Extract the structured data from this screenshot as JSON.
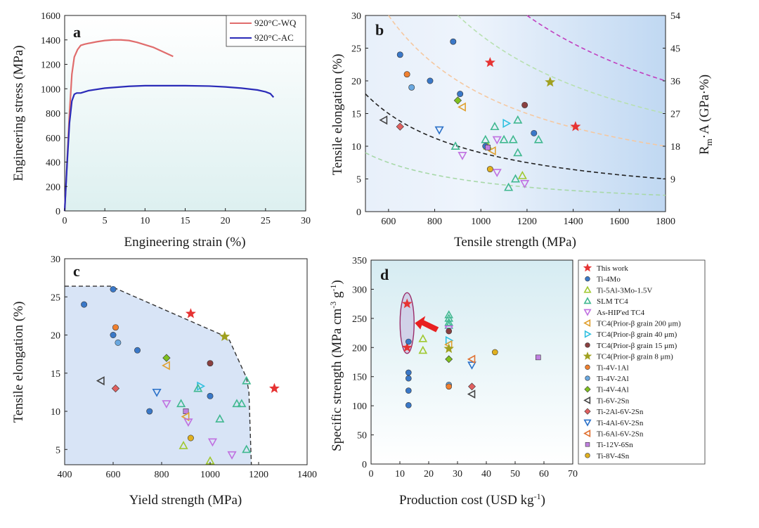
{
  "chart_data": [
    {
      "panel": "a",
      "type": "line",
      "xlabel": "Engineering strain (%)",
      "ylabel": "Engineering stress (MPa)",
      "xlim": [
        0,
        30
      ],
      "ylim": [
        0,
        1600
      ],
      "xticks": [
        "0",
        "5",
        "10",
        "15",
        "20",
        "25",
        "30"
      ],
      "yticks": [
        "0",
        "200",
        "400",
        "600",
        "800",
        "1000",
        "1200",
        "1400",
        "1600"
      ],
      "legend_position": "top-right",
      "series": [
        {
          "name": "920°C-WQ",
          "color": "#e06c6c",
          "x": [
            0,
            0.3,
            0.6,
            0.9,
            1.2,
            1.6,
            2.0,
            2.5,
            3,
            4,
            5,
            6,
            7,
            8,
            9,
            10,
            11,
            12,
            13,
            13.5
          ],
          "y": [
            0,
            400,
            800,
            1120,
            1260,
            1320,
            1355,
            1365,
            1372,
            1385,
            1395,
            1400,
            1400,
            1395,
            1380,
            1360,
            1340,
            1310,
            1280,
            1265
          ]
        },
        {
          "name": "920°C-AC",
          "color": "#2b2bb8",
          "x": [
            0,
            0.3,
            0.6,
            0.9,
            1.2,
            1.5,
            2,
            3,
            5,
            8,
            10,
            12,
            15,
            18,
            20,
            22,
            24,
            25,
            25.6,
            26
          ],
          "y": [
            0,
            380,
            720,
            900,
            955,
            965,
            965,
            985,
            1005,
            1020,
            1025,
            1025,
            1025,
            1022,
            1015,
            1005,
            990,
            975,
            960,
            930
          ]
        }
      ]
    },
    {
      "panel": "b",
      "type": "scatter",
      "xlabel": "Tensile strength (MPa)",
      "ylabel": "Tensile elongation (%)",
      "y2label": "Rm·A (GPa·%)",
      "xlim": [
        500,
        1800
      ],
      "ylim": [
        0,
        30
      ],
      "y2lim": [
        0,
        54
      ],
      "xticks": [
        "600",
        "800",
        "1000",
        "1200",
        "1400",
        "1600",
        "1800"
      ],
      "yticks": [
        "0",
        "5",
        "10",
        "15",
        "20",
        "25",
        "30"
      ],
      "y2ticks": [
        "9",
        "18",
        "27",
        "36",
        "45",
        "54"
      ],
      "iso_curves": [
        {
          "value": 4.5,
          "color": "#a8d8a8"
        },
        {
          "value": 9,
          "color": "#222222"
        },
        {
          "value": 18,
          "color": "#f5c8a0"
        },
        {
          "value": 27,
          "color": "#b8e0b0"
        },
        {
          "value": 36,
          "color": "#c040c0"
        }
      ],
      "points": [
        {
          "m": "star",
          "c": "#e63333",
          "x": 1040,
          "y": 22.8
        },
        {
          "m": "star",
          "c": "#e63333",
          "x": 1410,
          "y": 13
        },
        {
          "m": "circle",
          "c": "#3a78c8",
          "x": 650,
          "y": 24
        },
        {
          "m": "circle",
          "c": "#3a78c8",
          "x": 780,
          "y": 20
        },
        {
          "m": "circle",
          "c": "#3a78c8",
          "x": 880,
          "y": 26
        },
        {
          "m": "circle",
          "c": "#3a78c8",
          "x": 910,
          "y": 18
        },
        {
          "m": "circle",
          "c": "#3a78c8",
          "x": 1230,
          "y": 12
        },
        {
          "m": "circle",
          "c": "#6aa8e0",
          "x": 700,
          "y": 19
        },
        {
          "m": "tri-up",
          "c": "#a0c830",
          "x": 1180,
          "y": 5.5
        },
        {
          "m": "tri-up",
          "c": "#a0c830",
          "x": 1030,
          "y": 10
        },
        {
          "m": "tri-up",
          "c": "#40b890",
          "x": 1020,
          "y": 11
        },
        {
          "m": "tri-up",
          "c": "#40b890",
          "x": 1060,
          "y": 13
        },
        {
          "m": "tri-up",
          "c": "#40b890",
          "x": 1100,
          "y": 11
        },
        {
          "m": "tri-up",
          "c": "#40b890",
          "x": 1140,
          "y": 11
        },
        {
          "m": "tri-up",
          "c": "#40b890",
          "x": 1160,
          "y": 14
        },
        {
          "m": "tri-up",
          "c": "#40b890",
          "x": 1160,
          "y": 9
        },
        {
          "m": "tri-up",
          "c": "#40b890",
          "x": 1250,
          "y": 11
        },
        {
          "m": "tri-up",
          "c": "#40b890",
          "x": 1150,
          "y": 5
        },
        {
          "m": "tri-up",
          "c": "#40b890",
          "x": 1120,
          "y": 3.7
        },
        {
          "m": "tri-up",
          "c": "#40b890",
          "x": 890,
          "y": 10
        },
        {
          "m": "tri-down",
          "c": "#c070e0",
          "x": 1070,
          "y": 6
        },
        {
          "m": "tri-down",
          "c": "#c070e0",
          "x": 1190,
          "y": 4.3
        },
        {
          "m": "tri-down",
          "c": "#c070e0",
          "x": 920,
          "y": 8.6
        },
        {
          "m": "tri-down",
          "c": "#c070e0",
          "x": 1070,
          "y": 11
        },
        {
          "m": "tri-left",
          "c": "#e0a030",
          "x": 1050,
          "y": 9.3
        },
        {
          "m": "tri-left",
          "c": "#e0a030",
          "x": 920,
          "y": 16
        },
        {
          "m": "tri-right",
          "c": "#30c0e0",
          "x": 1110,
          "y": 13.5
        },
        {
          "m": "circle",
          "c": "#8a4040",
          "x": 1190,
          "y": 16.3
        },
        {
          "m": "star",
          "c": "#a0a020",
          "x": 1300,
          "y": 19.8
        },
        {
          "m": "circle",
          "c": "#f08030",
          "x": 680,
          "y": 21
        },
        {
          "m": "circle",
          "c": "#3a78c8",
          "x": 1020,
          "y": 10
        },
        {
          "m": "diamond",
          "c": "#80c020",
          "x": 900,
          "y": 17
        },
        {
          "m": "tri-left",
          "c": "#444444",
          "x": 580,
          "y": 14
        },
        {
          "m": "diamond",
          "c": "#e06060",
          "x": 650,
          "y": 13
        },
        {
          "m": "tri-down",
          "c": "#2a70c8",
          "x": 820,
          "y": 12.5
        },
        {
          "m": "square",
          "c": "#c080e0",
          "x": 1030,
          "y": 9.8
        },
        {
          "m": "circle",
          "c": "#e0b020",
          "x": 1040,
          "y": 6.5
        }
      ]
    },
    {
      "panel": "c",
      "type": "scatter",
      "xlabel": "Yield strength (MPa)",
      "ylabel": "Tensile elongation (%)",
      "xlim": [
        400,
        1400
      ],
      "ylim": [
        3,
        30
      ],
      "xticks": [
        "400",
        "600",
        "800",
        "1000",
        "1200",
        "1400"
      ],
      "yticks": [
        "5",
        "10",
        "15",
        "20",
        "25",
        "30"
      ],
      "boundary": [
        [
          400,
          26.4
        ],
        [
          590,
          26.4
        ],
        [
          1050,
          20
        ],
        [
          1080,
          19.3
        ],
        [
          1150,
          14.4
        ],
        [
          1160,
          12.5
        ],
        [
          1170,
          3
        ]
      ],
      "points": [
        {
          "m": "star",
          "c": "#e63333",
          "x": 920,
          "y": 22.8
        },
        {
          "m": "star",
          "c": "#e63333",
          "x": 1265,
          "y": 13
        },
        {
          "m": "circle",
          "c": "#3a78c8",
          "x": 480,
          "y": 24
        },
        {
          "m": "circle",
          "c": "#3a78c8",
          "x": 600,
          "y": 26
        },
        {
          "m": "circle",
          "c": "#3a78c8",
          "x": 600,
          "y": 20
        },
        {
          "m": "circle",
          "c": "#3a78c8",
          "x": 700,
          "y": 18
        },
        {
          "m": "circle",
          "c": "#3a78c8",
          "x": 750,
          "y": 10
        },
        {
          "m": "circle",
          "c": "#3a78c8",
          "x": 1000,
          "y": 12
        },
        {
          "m": "circle",
          "c": "#6aa8e0",
          "x": 620,
          "y": 19
        },
        {
          "m": "circle",
          "c": "#f08030",
          "x": 610,
          "y": 21
        },
        {
          "m": "diamond",
          "c": "#80c020",
          "x": 820,
          "y": 17
        },
        {
          "m": "tri-left",
          "c": "#e0a030",
          "x": 820,
          "y": 16
        },
        {
          "m": "tri-left",
          "c": "#444444",
          "x": 550,
          "y": 14
        },
        {
          "m": "diamond",
          "c": "#e06060",
          "x": 610,
          "y": 13
        },
        {
          "m": "tri-down",
          "c": "#2a70c8",
          "x": 780,
          "y": 12.5
        },
        {
          "m": "tri-right",
          "c": "#30c0e0",
          "x": 960,
          "y": 13.3
        },
        {
          "m": "tri-up",
          "c": "#40b890",
          "x": 950,
          "y": 13
        },
        {
          "m": "tri-down",
          "c": "#c070e0",
          "x": 820,
          "y": 11
        },
        {
          "m": "tri-up",
          "c": "#40b890",
          "x": 880,
          "y": 11
        },
        {
          "m": "tri-up",
          "c": "#40b890",
          "x": 1110,
          "y": 11
        },
        {
          "m": "tri-up",
          "c": "#40b890",
          "x": 1130,
          "y": 11
        },
        {
          "m": "circle",
          "c": "#8a4040",
          "x": 1000,
          "y": 16.3
        },
        {
          "m": "star",
          "c": "#a0a020",
          "x": 1060,
          "y": 19.8
        },
        {
          "m": "tri-up",
          "c": "#40b890",
          "x": 1150,
          "y": 14
        },
        {
          "m": "square",
          "c": "#c080e0",
          "x": 900,
          "y": 10
        },
        {
          "m": "tri-left",
          "c": "#e0a030",
          "x": 900,
          "y": 9.3
        },
        {
          "m": "tri-down",
          "c": "#c070e0",
          "x": 910,
          "y": 8.6
        },
        {
          "m": "tri-up",
          "c": "#40b890",
          "x": 1040,
          "y": 9
        },
        {
          "m": "circle",
          "c": "#e0b020",
          "x": 920,
          "y": 6.5
        },
        {
          "m": "tri-down",
          "c": "#c070e0",
          "x": 1010,
          "y": 6
        },
        {
          "m": "tri-up",
          "c": "#a0c830",
          "x": 890,
          "y": 5.5
        },
        {
          "m": "tri-up",
          "c": "#40b890",
          "x": 1150,
          "y": 5
        },
        {
          "m": "tri-down",
          "c": "#c070e0",
          "x": 1090,
          "y": 4.3
        },
        {
          "m": "tri-up",
          "c": "#a0c830",
          "x": 1000,
          "y": 3.5
        }
      ]
    },
    {
      "panel": "d",
      "type": "scatter",
      "xlabel": "Production cost (USD kg-1)",
      "ylabel": "Specific strength (MPa cm-3 g-1)",
      "xlim": [
        0,
        70
      ],
      "ylim": [
        0,
        350
      ],
      "xticks": [
        "0",
        "10",
        "20",
        "30",
        "40",
        "50",
        "60",
        "70"
      ],
      "yticks": [
        "0",
        "50",
        "100",
        "150",
        "200",
        "250",
        "300",
        "350"
      ],
      "legend_position": "right",
      "legend": [
        {
          "label": "This work",
          "m": "star",
          "c": "#e63333"
        },
        {
          "label": "Ti-4Mo",
          "m": "circle",
          "c": "#3a78c8"
        },
        {
          "label": "Ti-5Al-3Mo-1.5V",
          "m": "tri-up",
          "c": "#a0c830"
        },
        {
          "label": "SLM TC4",
          "m": "tri-up",
          "c": "#40b890"
        },
        {
          "label": "As-HIP'ed TC4",
          "m": "tri-down",
          "c": "#c070e0"
        },
        {
          "label": "TC4(Prior-β grain 200 μm)",
          "m": "tri-left",
          "c": "#e0a030"
        },
        {
          "label": "TC4(Prior-β grain 40 μm)",
          "m": "tri-right",
          "c": "#30c0e0"
        },
        {
          "label": "TC4(Prior-β grain 15 μm)",
          "m": "circle",
          "c": "#8a4040"
        },
        {
          "label": "TC4(Prior-β grain 8 μm)",
          "m": "star",
          "c": "#a0a020"
        },
        {
          "label": "Ti-4V-1Al",
          "m": "circle",
          "c": "#f08030"
        },
        {
          "label": "Ti-4V-2Al",
          "m": "circle",
          "c": "#6aa8e0"
        },
        {
          "label": "Ti-4V-4Al",
          "m": "diamond",
          "c": "#80c020"
        },
        {
          "label": "Ti-6V-2Sn",
          "m": "tri-left",
          "c": "#444444"
        },
        {
          "label": "Ti-2Al-6V-2Sn",
          "m": "diamond",
          "c": "#e06060"
        },
        {
          "label": "Ti-4Al-6V-2Sn",
          "m": "tri-down",
          "c": "#2a70c8"
        },
        {
          "label": "Ti-6Al-6V-2Sn",
          "m": "tri-left",
          "c": "#e07030"
        },
        {
          "label": "Ti-12V-6Sn",
          "m": "square",
          "c": "#c080e0"
        },
        {
          "label": "Ti-8V-4Sn",
          "m": "circle",
          "c": "#e0b020"
        }
      ],
      "points": [
        {
          "m": "star",
          "c": "#e63333",
          "x": 12.5,
          "y": 275
        },
        {
          "m": "star",
          "c": "#e63333",
          "x": 12.5,
          "y": 200
        },
        {
          "m": "circle",
          "c": "#3a78c8",
          "x": 13,
          "y": 210
        },
        {
          "m": "circle",
          "c": "#3a78c8",
          "x": 13,
          "y": 157
        },
        {
          "m": "circle",
          "c": "#3a78c8",
          "x": 13,
          "y": 147
        },
        {
          "m": "circle",
          "c": "#3a78c8",
          "x": 13,
          "y": 126
        },
        {
          "m": "circle",
          "c": "#3a78c8",
          "x": 13,
          "y": 101
        },
        {
          "m": "tri-up",
          "c": "#a0c830",
          "x": 18,
          "y": 215
        },
        {
          "m": "tri-up",
          "c": "#a0c830",
          "x": 18,
          "y": 195
        },
        {
          "m": "tri-up",
          "c": "#40b890",
          "x": 27,
          "y": 256
        },
        {
          "m": "tri-up",
          "c": "#40b890",
          "x": 27,
          "y": 250
        },
        {
          "m": "tri-up",
          "c": "#40b890",
          "x": 27,
          "y": 243
        },
        {
          "m": "tri-up",
          "c": "#40b890",
          "x": 27,
          "y": 238
        },
        {
          "m": "tri-down",
          "c": "#c070e0",
          "x": 27,
          "y": 232
        },
        {
          "m": "circle",
          "c": "#8a4040",
          "x": 27,
          "y": 228
        },
        {
          "m": "tri-right",
          "c": "#30c0e0",
          "x": 27,
          "y": 212
        },
        {
          "m": "tri-left",
          "c": "#e0a030",
          "x": 27,
          "y": 205
        },
        {
          "m": "star",
          "c": "#a0a020",
          "x": 27,
          "y": 198
        },
        {
          "m": "diamond",
          "c": "#80c020",
          "x": 27,
          "y": 180
        },
        {
          "m": "circle",
          "c": "#6aa8e0",
          "x": 27,
          "y": 136
        },
        {
          "m": "circle",
          "c": "#f08030",
          "x": 27,
          "y": 133
        },
        {
          "m": "diamond",
          "c": "#e06060",
          "x": 35,
          "y": 133
        },
        {
          "m": "tri-left",
          "c": "#444444",
          "x": 35,
          "y": 120
        },
        {
          "m": "tri-down",
          "c": "#2a70c8",
          "x": 35,
          "y": 170
        },
        {
          "m": "tri-left",
          "c": "#e07030",
          "x": 35,
          "y": 180
        },
        {
          "m": "circle",
          "c": "#e0b020",
          "x": 43,
          "y": 192
        },
        {
          "m": "square",
          "c": "#c080e0",
          "x": 58,
          "y": 183
        }
      ]
    }
  ],
  "panel_labels": {
    "a": "a",
    "b": "b",
    "c": "c",
    "d": "d"
  },
  "axis_text": {
    "a_x": "Engineering strain (%)",
    "a_y": "Engineering stress (MPa)",
    "b_x": "Tensile strength (MPa)",
    "b_y": "Tensile elongation (%)",
    "b_y2_main": "R",
    "b_y2_sub": "m",
    "b_y2_rest": "·A (GPa·%)",
    "c_x": "Yield strength (MPa)",
    "c_y": "Tensile elongation (%)",
    "d_x_main": "Production cost (USD kg",
    "d_x_sup": "-1",
    "d_x_end": ")",
    "d_y_main": "Specific strength (MPa cm",
    "d_y_sup1": "-3",
    "d_y_mid": " g",
    "d_y_sup2": "-1",
    "d_y_end": ")"
  }
}
